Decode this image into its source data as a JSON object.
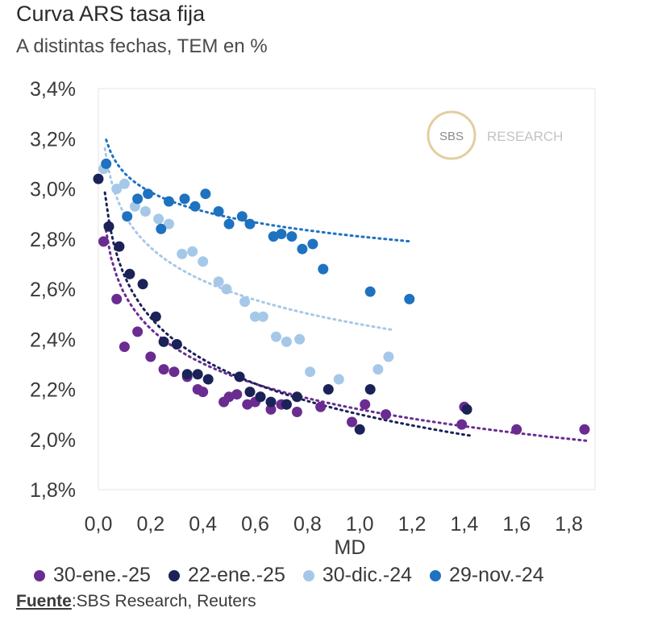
{
  "chart_data": {
    "type": "scatter",
    "title": "Curva ARS tasa fija",
    "subtitle": "A distintas fechas, TEM en %",
    "xlabel": "MD",
    "ylabel": "",
    "xlim": [
      0,
      1.9
    ],
    "ylim": [
      1.8,
      3.4
    ],
    "x_ticks": [
      0.0,
      0.2,
      0.4,
      0.6,
      0.8,
      1.0,
      1.2,
      1.4,
      1.6,
      1.8
    ],
    "x_tick_labels": [
      "0,0",
      "0,2",
      "0,4",
      "0,6",
      "0,8",
      "1,0",
      "1,2",
      "1,4",
      "1,6",
      "1,8"
    ],
    "y_ticks": [
      1.8,
      2.0,
      2.2,
      2.4,
      2.6,
      2.8,
      3.0,
      3.2,
      3.4
    ],
    "y_tick_labels": [
      "1,8%",
      "2,0%",
      "2,2%",
      "2,4%",
      "2,6%",
      "2,8%",
      "3,0%",
      "3,2%",
      "3,4%"
    ],
    "grid": false,
    "legend_position": "bottom",
    "watermark": {
      "badge": "SBS",
      "text": "RESEARCH"
    },
    "series": [
      {
        "name": "30-ene.-25",
        "color": "#6a2c91",
        "points": [
          [
            0.02,
            2.79
          ],
          [
            0.07,
            2.56
          ],
          [
            0.1,
            2.37
          ],
          [
            0.15,
            2.43
          ],
          [
            0.2,
            2.33
          ],
          [
            0.25,
            2.28
          ],
          [
            0.29,
            2.27
          ],
          [
            0.34,
            2.25
          ],
          [
            0.38,
            2.2
          ],
          [
            0.4,
            2.19
          ],
          [
            0.48,
            2.15
          ],
          [
            0.5,
            2.17
          ],
          [
            0.53,
            2.18
          ],
          [
            0.57,
            2.14
          ],
          [
            0.6,
            2.15
          ],
          [
            0.62,
            2.17
          ],
          [
            0.66,
            2.12
          ],
          [
            0.7,
            2.14
          ],
          [
            0.72,
            2.14
          ],
          [
            0.76,
            2.11
          ],
          [
            0.85,
            2.13
          ],
          [
            0.97,
            2.07
          ],
          [
            1.02,
            2.14
          ],
          [
            1.1,
            2.1
          ],
          [
            1.39,
            2.06
          ],
          [
            1.4,
            2.13
          ],
          [
            1.6,
            2.04
          ],
          [
            1.86,
            2.04
          ]
        ],
        "trend": {
          "a": 2.12,
          "b": -0.2
        }
      },
      {
        "name": "22-ene.-25",
        "color": "#1a2257",
        "points": [
          [
            0.0,
            3.04
          ],
          [
            0.04,
            2.85
          ],
          [
            0.08,
            2.77
          ],
          [
            0.12,
            2.66
          ],
          [
            0.17,
            2.62
          ],
          [
            0.22,
            2.49
          ],
          [
            0.25,
            2.39
          ],
          [
            0.3,
            2.38
          ],
          [
            0.34,
            2.26
          ],
          [
            0.38,
            2.26
          ],
          [
            0.42,
            2.24
          ],
          [
            0.54,
            2.25
          ],
          [
            0.58,
            2.19
          ],
          [
            0.62,
            2.17
          ],
          [
            0.66,
            2.15
          ],
          [
            0.72,
            2.14
          ],
          [
            0.76,
            2.17
          ],
          [
            0.88,
            2.2
          ],
          [
            1.0,
            2.04
          ],
          [
            1.04,
            2.2
          ],
          [
            1.41,
            2.12
          ]
        ],
        "trend": {
          "a": 2.1,
          "b": -0.24
        }
      },
      {
        "name": "30-dic.-24",
        "color": "#a6c8e8",
        "points": [
          [
            0.02,
            3.08
          ],
          [
            0.07,
            3.0
          ],
          [
            0.1,
            3.02
          ],
          [
            0.14,
            2.93
          ],
          [
            0.18,
            2.91
          ],
          [
            0.23,
            2.88
          ],
          [
            0.27,
            2.86
          ],
          [
            0.32,
            2.74
          ],
          [
            0.36,
            2.75
          ],
          [
            0.4,
            2.71
          ],
          [
            0.46,
            2.63
          ],
          [
            0.49,
            2.6
          ],
          [
            0.56,
            2.55
          ],
          [
            0.6,
            2.49
          ],
          [
            0.63,
            2.49
          ],
          [
            0.68,
            2.41
          ],
          [
            0.72,
            2.39
          ],
          [
            0.77,
            2.4
          ],
          [
            0.81,
            2.27
          ],
          [
            0.92,
            2.24
          ],
          [
            1.07,
            2.28
          ],
          [
            1.11,
            2.33
          ]
        ],
        "trend": {
          "a": 2.46,
          "b": -0.19
        }
      },
      {
        "name": "29-nov.-24",
        "color": "#1e72c0",
        "points": [
          [
            0.03,
            3.1
          ],
          [
            0.11,
            2.89
          ],
          [
            0.15,
            2.96
          ],
          [
            0.19,
            2.98
          ],
          [
            0.24,
            2.84
          ],
          [
            0.27,
            2.95
          ],
          [
            0.33,
            2.96
          ],
          [
            0.37,
            2.93
          ],
          [
            0.41,
            2.98
          ],
          [
            0.46,
            2.91
          ],
          [
            0.5,
            2.86
          ],
          [
            0.55,
            2.89
          ],
          [
            0.58,
            2.86
          ],
          [
            0.67,
            2.81
          ],
          [
            0.7,
            2.82
          ],
          [
            0.74,
            2.81
          ],
          [
            0.78,
            2.76
          ],
          [
            0.82,
            2.78
          ],
          [
            0.86,
            2.68
          ],
          [
            1.04,
            2.59
          ],
          [
            1.19,
            2.56
          ]
        ],
        "trend": {
          "a": 2.81,
          "b": -0.11
        }
      }
    ]
  },
  "source": {
    "label": "Fuente",
    "text": ":SBS Research, Reuters"
  }
}
